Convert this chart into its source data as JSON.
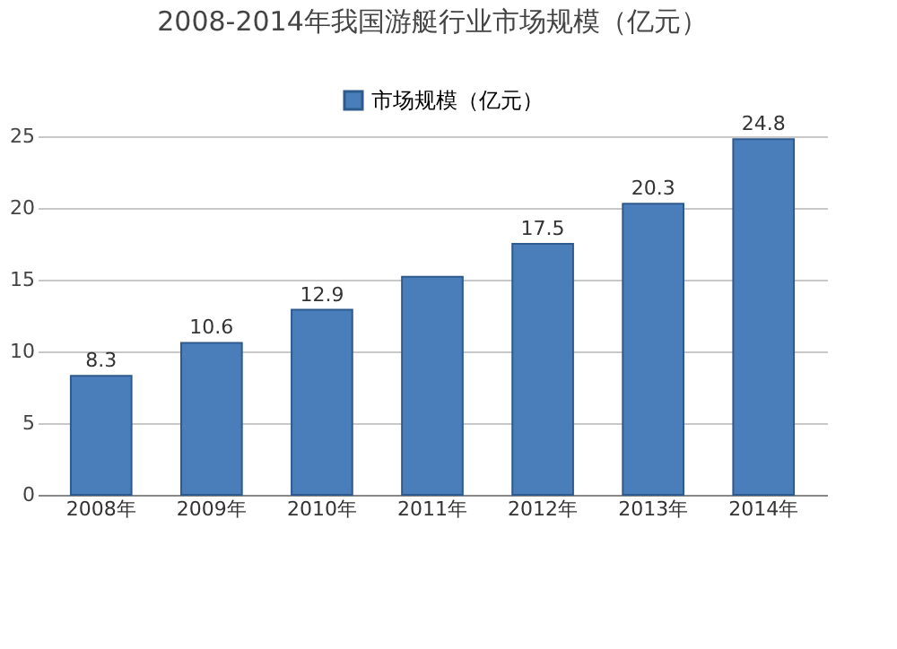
{
  "chart_data": {
    "type": "bar",
    "title": "2008-2014年我国游艇行业市场规模（亿元）",
    "categories": [
      "2008年",
      "2009年",
      "2010年",
      "2011年",
      "2012年",
      "2013年",
      "2014年"
    ],
    "series": [
      {
        "name": "市场规模（亿元）",
        "color": "#4a7ebb",
        "values": [
          8.3,
          10.6,
          12.9,
          15.2,
          17.5,
          20.3,
          24.8
        ],
        "value_labels": [
          "8.3",
          "10.6",
          "12.9",
          null,
          "17.5",
          "20.3",
          "24.8"
        ]
      }
    ],
    "ylim": [
      0,
      25
    ],
    "yticks": [
      0,
      5,
      10,
      15,
      20,
      25
    ],
    "grid": "y",
    "legend": "top"
  }
}
